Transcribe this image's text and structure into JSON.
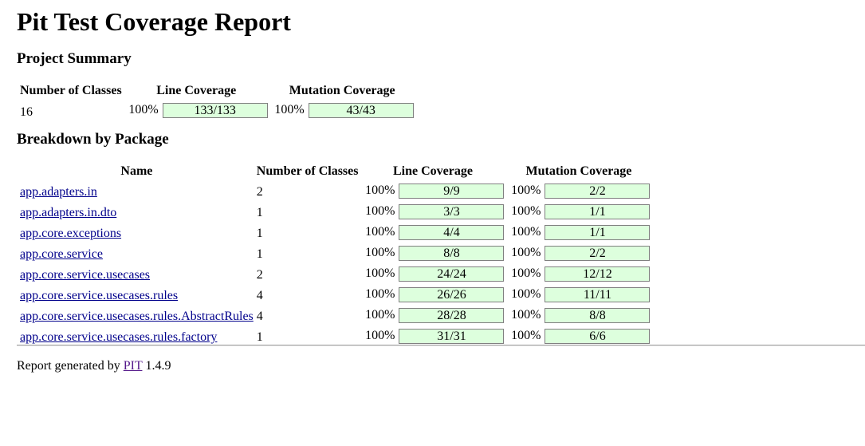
{
  "title": "Pit Test Coverage Report",
  "summary": {
    "heading": "Project Summary",
    "columns": [
      "Number of Classes",
      "Line Coverage",
      "Mutation Coverage"
    ],
    "classes": "16",
    "line": {
      "pct": "100%",
      "ratio": "133/133",
      "fraction": 1.0
    },
    "mutation": {
      "pct": "100%",
      "ratio": "43/43",
      "fraction": 1.0
    }
  },
  "breakdown": {
    "heading": "Breakdown by Package",
    "columns": [
      "Name",
      "Number of Classes",
      "Line Coverage",
      "Mutation Coverage"
    ],
    "rows": [
      {
        "name": "app.adapters.in",
        "classes": "2",
        "line_pct": "100%",
        "line_ratio": "9/9",
        "mut_pct": "100%",
        "mut_ratio": "2/2"
      },
      {
        "name": "app.adapters.in.dto",
        "classes": "1",
        "line_pct": "100%",
        "line_ratio": "3/3",
        "mut_pct": "100%",
        "mut_ratio": "1/1"
      },
      {
        "name": "app.core.exceptions",
        "classes": "1",
        "line_pct": "100%",
        "line_ratio": "4/4",
        "mut_pct": "100%",
        "mut_ratio": "1/1"
      },
      {
        "name": "app.core.service",
        "classes": "1",
        "line_pct": "100%",
        "line_ratio": "8/8",
        "mut_pct": "100%",
        "mut_ratio": "2/2"
      },
      {
        "name": "app.core.service.usecases",
        "classes": "2",
        "line_pct": "100%",
        "line_ratio": "24/24",
        "mut_pct": "100%",
        "mut_ratio": "12/12"
      },
      {
        "name": "app.core.service.usecases.rules",
        "classes": "4",
        "line_pct": "100%",
        "line_ratio": "26/26",
        "mut_pct": "100%",
        "mut_ratio": "11/11"
      },
      {
        "name": "app.core.service.usecases.rules.AbstractRules",
        "classes": "4",
        "line_pct": "100%",
        "line_ratio": "28/28",
        "mut_pct": "100%",
        "mut_ratio": "8/8"
      },
      {
        "name": "app.core.service.usecases.rules.factory",
        "classes": "1",
        "line_pct": "100%",
        "line_ratio": "31/31",
        "mut_pct": "100%",
        "mut_ratio": "6/6"
      }
    ]
  },
  "footer": {
    "prefix": "Report generated by",
    "link": "PIT",
    "version": "1.4.9"
  },
  "colors": {
    "bar_fill": "#ddffdd",
    "bar_border": "#808080",
    "link": "#00008b",
    "visited_link": "#551a8b"
  }
}
